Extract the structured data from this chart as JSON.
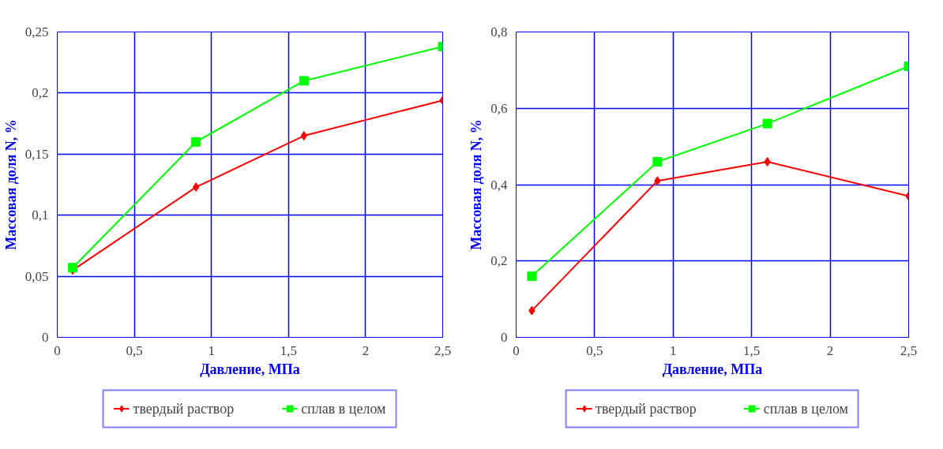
{
  "chart_data": [
    {
      "type": "line",
      "xlabel": "Давление, МПа",
      "ylabel": "Массовая доля N, %",
      "xlim": [
        0,
        2.5
      ],
      "xticks": [
        0,
        {
          "value": 0.5,
          "label": "0,5"
        },
        1,
        {
          "value": 1.5,
          "label": "1,5"
        },
        2,
        {
          "value": 2.5,
          "label": "2,5"
        }
      ],
      "ylim": [
        0,
        0.25
      ],
      "yticks": [
        0,
        {
          "value": 0.05,
          "label": "0,05"
        },
        {
          "value": 0.1,
          "label": "0,1"
        },
        {
          "value": 0.15,
          "label": "0,15"
        },
        {
          "value": 0.2,
          "label": "0,2"
        },
        {
          "value": 0.25,
          "label": "0,25"
        }
      ],
      "grid": true,
      "legend": "bottom",
      "x": [
        0.1,
        0.9,
        1.6,
        2.5
      ],
      "series": [
        {
          "name": "твердый раствор",
          "color": "#ff0000",
          "marker": "diamond",
          "values": [
            0.055,
            0.123,
            0.165,
            0.194
          ]
        },
        {
          "name": "сплав в целом",
          "color": "#00ff00",
          "marker": "square",
          "values": [
            0.057,
            0.16,
            0.21,
            0.238
          ]
        }
      ]
    },
    {
      "type": "line",
      "xlabel": "Давление, МПа",
      "ylabel": "Массовая доля N, %",
      "xlim": [
        0,
        2.5
      ],
      "xticks": [
        0,
        {
          "value": 0.5,
          "label": "0,5"
        },
        1,
        {
          "value": 1.5,
          "label": "1,5"
        },
        2,
        {
          "value": 2.5,
          "label": "2,5"
        }
      ],
      "ylim": [
        0,
        0.8
      ],
      "yticks": [
        0,
        {
          "value": 0.2,
          "label": "0,2"
        },
        {
          "value": 0.4,
          "label": "0,4"
        },
        {
          "value": 0.6,
          "label": "0,6"
        },
        {
          "value": 0.8,
          "label": "0,8"
        }
      ],
      "grid": true,
      "legend": "bottom",
      "x": [
        0.1,
        0.9,
        1.6,
        2.5
      ],
      "series": [
        {
          "name": "твердый раствор",
          "color": "#ff0000",
          "marker": "diamond",
          "values": [
            0.07,
            0.41,
            0.46,
            0.37
          ]
        },
        {
          "name": "сплав в целом",
          "color": "#00ff00",
          "marker": "square",
          "values": [
            0.16,
            0.46,
            0.56,
            0.71
          ]
        }
      ]
    }
  ]
}
